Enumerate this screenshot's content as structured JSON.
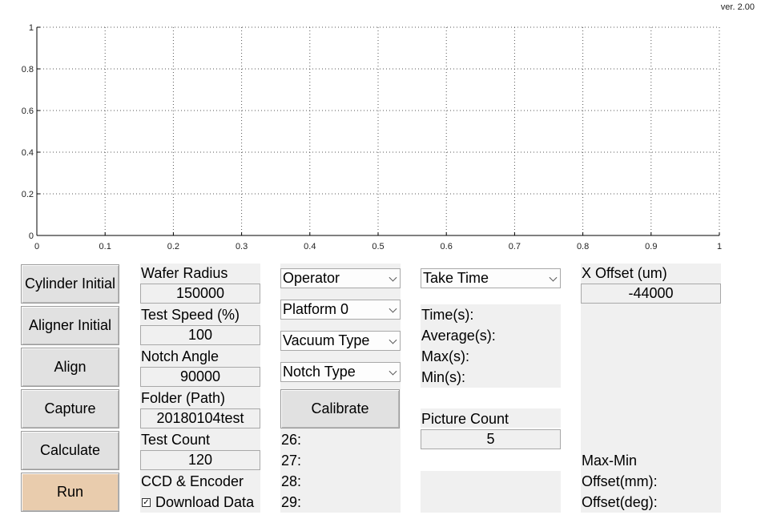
{
  "version": "ver. 2.00",
  "chart_data": {
    "type": "line",
    "series": [],
    "xlim": [
      0,
      1
    ],
    "ylim": [
      0,
      1
    ],
    "xticks": [
      "0",
      "0.1",
      "0.2",
      "0.3",
      "0.4",
      "0.5",
      "0.6",
      "0.7",
      "0.8",
      "0.9",
      "1"
    ],
    "yticks": [
      "0",
      "0.2",
      "0.4",
      "0.6",
      "0.8",
      "1"
    ],
    "grid": true
  },
  "buttons": {
    "cylinder_initial": "Cylinder Initial",
    "aligner_initial": "Aligner Initial",
    "align": "Align",
    "capture": "Capture",
    "calculate": "Calculate",
    "run": "Run",
    "run_color": "#e9ccad"
  },
  "params": {
    "wafer_radius_label": "Wafer Radius",
    "wafer_radius_value": "150000",
    "test_speed_label": "Test Speed (%)",
    "test_speed_value": "100",
    "notch_angle_label": "Notch Angle",
    "notch_angle_value": "90000",
    "folder_label": "Folder (Path)",
    "folder_value": "20180104test",
    "test_count_label": "Test Count",
    "test_count_value": "120",
    "ccd_encoder_label": "CCD & Encoder",
    "download_data_label": "Download Data",
    "download_data_checked": true
  },
  "selectors": {
    "operator": "Operator",
    "platform": "Platform 0",
    "vacuum_type": "Vacuum Type",
    "notch_type": "Notch Type",
    "calibrate": "Calibrate",
    "counts": [
      "26:",
      "27:",
      "28:",
      "29:"
    ]
  },
  "timing": {
    "take_time": "Take Time",
    "time": "Time(s):",
    "average": "Average(s):",
    "max": "Max(s):",
    "min": "Min(s):",
    "picture_count_label": "Picture Count",
    "picture_count_value": "5"
  },
  "offset": {
    "x_offset_label": "X Offset (um)",
    "x_offset_value": "-44000",
    "max_min": "Max-Min",
    "offset_mm": "Offset(mm):",
    "offset_deg": "Offset(deg):"
  }
}
